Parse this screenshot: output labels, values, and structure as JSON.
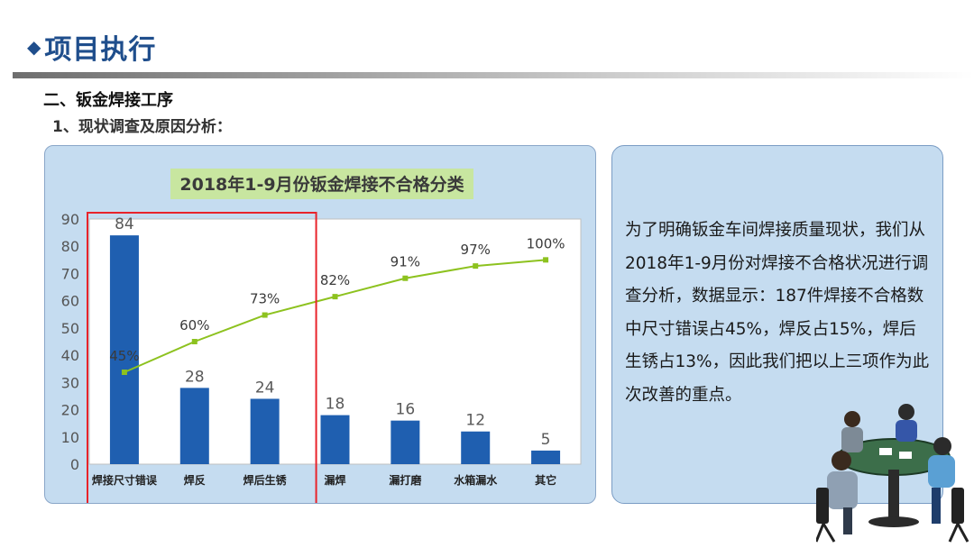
{
  "header": {
    "title": "项目执行"
  },
  "section_title": "二、钣金焊接工序",
  "subsection_title": "1、现状调查及原因分析：",
  "description": "为了明确钣金车间焊接质量现状，我们从2018年1-9月份对焊接不合格状况进行调查分析，数据显示：187件焊接不合格数中尺寸错误占45%，焊反占15%，焊后生锈占13%，因此我们把以上三项作为此次改善的重点。",
  "colors": {
    "bar": "#1f5fb0",
    "line": "#8dc21f",
    "highlight": "#e8232a",
    "title_bg": "#c8e6a0",
    "panel_bg": "#c5dcf0"
  },
  "chart_data": {
    "type": "bar",
    "title": "2018年1-9月份钣金焊接不合格分类",
    "categories": [
      "焊接尺寸错误",
      "焊反",
      "焊后生锈",
      "漏焊",
      "漏打磨",
      "水箱漏水",
      "其它"
    ],
    "values": [
      84,
      28,
      24,
      18,
      16,
      12,
      5
    ],
    "value_labels": [
      "84",
      "28",
      "24",
      "18",
      "16",
      "12",
      "5"
    ],
    "ylim": [
      0,
      90
    ],
    "yticks": [
      "0",
      "10",
      "20",
      "30",
      "40",
      "50",
      "60",
      "70",
      "80",
      "90"
    ],
    "cumulative_percent": [
      45,
      60,
      73,
      82,
      91,
      97,
      100
    ],
    "cumulative_labels": [
      "45%",
      "60%",
      "73%",
      "82%",
      "91%",
      "97%",
      "100%"
    ],
    "highlight_categories": [
      "焊接尺寸错误",
      "焊反",
      "焊后生锈"
    ]
  }
}
